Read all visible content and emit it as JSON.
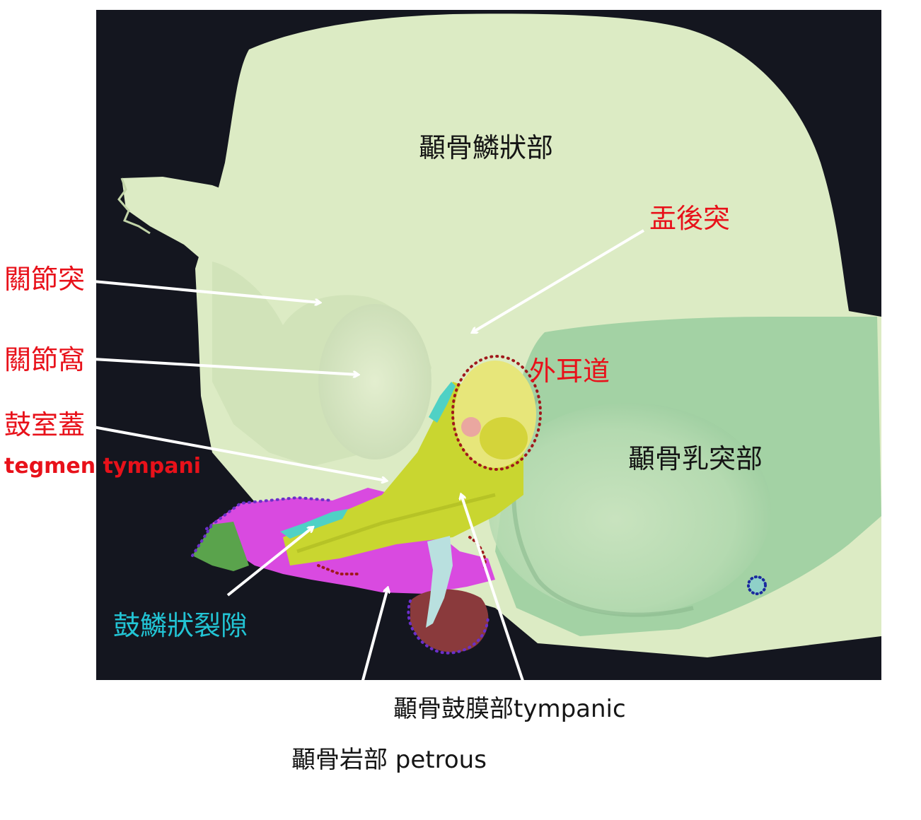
{
  "labels": {
    "squamous": "顳骨鱗狀部",
    "postglenoid": "盂後突",
    "articular_tubercle": "關節突",
    "articular_fossa": "關節窩",
    "tegmen": "鼓室蓋",
    "tegmen_en": "tegmen tympani",
    "external_meatus": "外耳道",
    "mastoid": "顳骨乳突部",
    "squamotympanic_fissure": "鼓鱗狀裂隙",
    "tympanic": "顳骨鼓膜部tympanic",
    "petrous": "顳骨岩部 petrous"
  },
  "colors": {
    "background_render": "#14161f",
    "squamous_bone": "#dcebc4",
    "mastoid_bone": "#a3d2a4",
    "tympanic_part": "#c9d630",
    "petrous_part": "#d94ae0",
    "fissure": "#4fd1c5",
    "label_red": "#e8111a",
    "label_cyan": "#22c4d4"
  }
}
